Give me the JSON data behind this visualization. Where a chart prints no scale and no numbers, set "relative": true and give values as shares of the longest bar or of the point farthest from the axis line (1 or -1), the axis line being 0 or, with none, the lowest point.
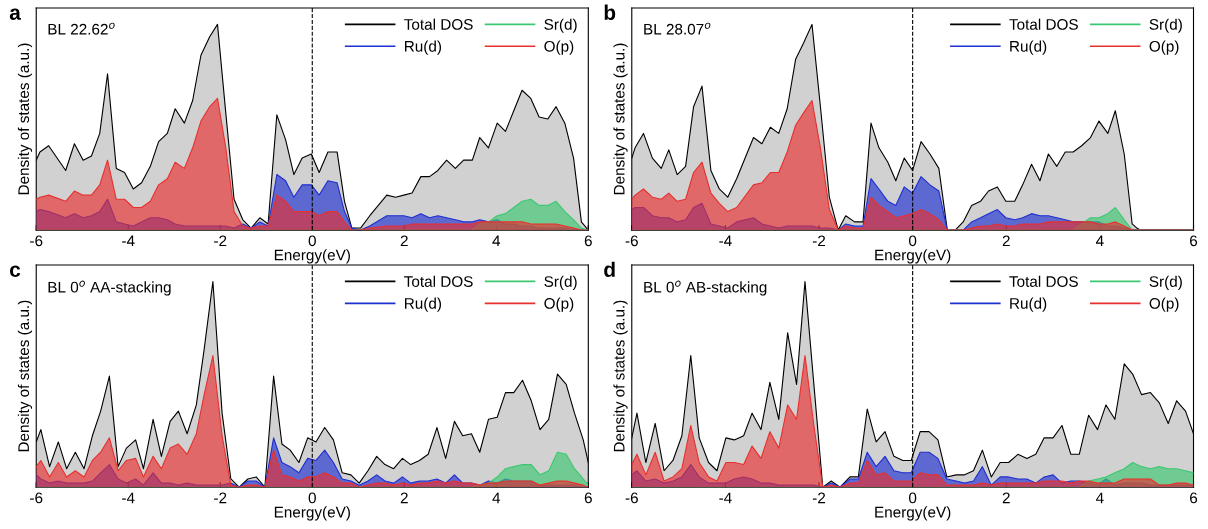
{
  "chart_data": [
    {
      "type": "area",
      "title": "a",
      "xlabel": "Energy(eV)",
      "ylabel": "Density of states (a.u.)",
      "annotations": [
        "BL 22.62$^{o}$"
      ],
      "relative": true,
      "xlim": [
        -6,
        6
      ],
      "xticks": [
        -6,
        -4,
        -2,
        0,
        2,
        4,
        6
      ],
      "tick_labels": "x",
      "legend": "top right",
      "grid": false,
      "ref_lines": [
        {
          "axis": "x",
          "value": 0,
          "color": "#000000",
          "line_style": "dashed"
        }
      ],
      "x": [
        -6,
        -5.92,
        -5.73,
        -5.36,
        -5.17,
        -4.98,
        -4.8,
        -4.62,
        -4.45,
        -4.26,
        -4.08,
        -3.89,
        -3.71,
        -3.52,
        -3.34,
        -3.15,
        -2.98,
        -2.78,
        -2.6,
        -2.42,
        -2.23,
        -2.06,
        -1.88,
        -1.7,
        -1.51,
        -1.33,
        -1.14,
        -0.96,
        -0.77,
        -0.58,
        -0.4,
        -0.22,
        -0.02,
        0.15,
        0.34,
        0.54,
        0.7,
        0.86,
        1.05,
        1.25,
        1.62,
        1.81,
        1.99,
        2.17,
        2.36,
        2.55,
        2.73,
        2.92,
        3.11,
        3.29,
        3.48,
        3.64,
        3.83,
        4.02,
        4.2,
        4.38,
        4.56,
        4.75,
        4.93,
        5.12,
        5.3,
        5.49,
        5.68,
        5.85,
        6
      ],
      "series": [
        {
          "name": "Total DOS",
          "color": "#000000",
          "values": [
            0.34,
            0.38,
            0.41,
            0.29,
            0.42,
            0.34,
            0.36,
            0.47,
            0.76,
            0.3,
            0.28,
            0.2,
            0.23,
            0.31,
            0.43,
            0.47,
            0.59,
            0.52,
            0.63,
            0.85,
            0.94,
            1.0,
            0.57,
            0.15,
            0.05,
            0.01,
            0.06,
            0.03,
            0.56,
            0.44,
            0.27,
            0.35,
            0.37,
            0.28,
            0.38,
            0.38,
            0.14,
            0.01,
            0.01,
            0.07,
            0.17,
            0.16,
            0.17,
            0.18,
            0.26,
            0.26,
            0.29,
            0.34,
            0.3,
            0.34,
            0.34,
            0.45,
            0.4,
            0.52,
            0.48,
            0.58,
            0.68,
            0.64,
            0.55,
            0.54,
            0.6,
            0.52,
            0.35,
            0.04,
            0
          ]
        },
        {
          "name": "Ru(d)",
          "color": "#1f2fd0",
          "values": [
            0.09,
            0.1,
            0.09,
            0.06,
            0.08,
            0.06,
            0.07,
            0.09,
            0.15,
            0.04,
            0.03,
            0.02,
            0.04,
            0.06,
            0.06,
            0.05,
            0.03,
            0.02,
            0.02,
            0.02,
            0.02,
            0.02,
            0.02,
            0.01,
            0.03,
            0.01,
            0.04,
            0.02,
            0.27,
            0.24,
            0.16,
            0.22,
            0.22,
            0.17,
            0.24,
            0.23,
            0.09,
            0.01,
            0,
            0.02,
            0.07,
            0.07,
            0.07,
            0.06,
            0.08,
            0.06,
            0.07,
            0.06,
            0.05,
            0.04,
            0.04,
            0.05,
            0.04,
            0.05,
            0.03,
            0.03,
            0.02,
            0.02,
            0.01,
            0.01,
            0.01,
            0.01,
            0,
            0,
            0
          ]
        },
        {
          "name": "Sr(d)",
          "color": "#3cc870",
          "values": [
            0,
            0,
            0,
            0,
            0,
            0,
            0,
            0,
            0,
            0,
            0,
            0,
            0,
            0,
            0,
            0,
            0,
            0,
            0,
            0,
            0,
            0,
            0,
            0,
            0,
            0,
            0,
            0,
            0,
            0,
            0,
            0,
            0,
            0,
            0,
            0,
            0,
            0,
            0,
            0,
            0,
            0,
            0,
            0,
            0,
            0,
            0,
            0,
            0,
            0,
            0,
            0.03,
            0.04,
            0.07,
            0.08,
            0.11,
            0.14,
            0.15,
            0.12,
            0.12,
            0.14,
            0.09,
            0.05,
            0.01,
            0
          ]
        },
        {
          "name": "O(p)",
          "color": "#e8302f",
          "values": [
            0.15,
            0.16,
            0.17,
            0.14,
            0.19,
            0.17,
            0.17,
            0.22,
            0.34,
            0.15,
            0.15,
            0.11,
            0.11,
            0.14,
            0.22,
            0.25,
            0.33,
            0.3,
            0.4,
            0.53,
            0.6,
            0.64,
            0.4,
            0.09,
            0.02,
            0.01,
            0.02,
            0.02,
            0.17,
            0.14,
            0.09,
            0.09,
            0.09,
            0.07,
            0.09,
            0.09,
            0.04,
            0,
            0,
            0.01,
            0.02,
            0.02,
            0.02,
            0.03,
            0.03,
            0.03,
            0.03,
            0.03,
            0.03,
            0.03,
            0.03,
            0.04,
            0.04,
            0.04,
            0.04,
            0.04,
            0.04,
            0.03,
            0.03,
            0.03,
            0.03,
            0.02,
            0.01,
            0,
            0
          ]
        }
      ]
    },
    {
      "type": "area",
      "title": "b",
      "xlabel": "Energy(eV)",
      "ylabel": "Density of states (a.u.)",
      "annotations": [
        "BL 28.07$^{o}$"
      ],
      "relative": true,
      "xlim": [
        -6,
        6
      ],
      "xticks": [
        -6,
        -4,
        -2,
        0,
        2,
        4,
        6
      ],
      "tick_labels": "x",
      "legend": "top right",
      "grid": false,
      "ref_lines": [
        {
          "axis": "x",
          "value": 0,
          "color": "#000000",
          "line_style": "dashed"
        }
      ],
      "x": [
        -6,
        -5.93,
        -5.75,
        -5.56,
        -5.37,
        -5.21,
        -5.03,
        -4.85,
        -4.68,
        -4.5,
        -4.31,
        -4.13,
        -3.95,
        -3.76,
        -3.4,
        -3.22,
        -3.04,
        -2.86,
        -2.68,
        -2.5,
        -2.33,
        -2.15,
        -1.97,
        -1.78,
        -1.59,
        -1.43,
        -1.24,
        -1.06,
        -0.89,
        -0.72,
        -0.53,
        -0.36,
        -0.18,
        0,
        0.18,
        0.37,
        0.56,
        0.74,
        0.91,
        1.08,
        1.26,
        1.45,
        1.62,
        1.81,
        1.99,
        2.18,
        2.35,
        2.54,
        2.72,
        2.9,
        3.08,
        3.26,
        3.43,
        3.61,
        3.8,
        3.98,
        4.17,
        4.33,
        4.52,
        4.69,
        4.79,
        4.87,
        6
      ],
      "series": [
        {
          "name": "Total DOS",
          "color": "#000000",
          "values": [
            0.35,
            0.4,
            0.47,
            0.35,
            0.3,
            0.39,
            0.27,
            0.31,
            0.6,
            0.7,
            0.29,
            0.2,
            0.16,
            0.25,
            0.45,
            0.42,
            0.5,
            0.47,
            0.59,
            0.83,
            0.91,
            1.0,
            0.6,
            0.16,
            0,
            0.07,
            0.04,
            0.04,
            0.52,
            0.4,
            0.33,
            0.24,
            0.35,
            0.29,
            0.43,
            0.37,
            0.3,
            0,
            0,
            0.04,
            0.12,
            0.14,
            0.19,
            0.21,
            0.14,
            0.14,
            0.22,
            0.32,
            0.24,
            0.37,
            0.31,
            0.38,
            0.38,
            0.41,
            0.45,
            0.53,
            0.47,
            0.58,
            0.37,
            0.03,
            0.01,
            0,
            0
          ]
        },
        {
          "name": "Ru(d)",
          "color": "#1f2fd0",
          "values": [
            0.1,
            0.11,
            0.11,
            0.07,
            0.06,
            0.06,
            0.04,
            0.05,
            0.11,
            0.13,
            0.03,
            0.02,
            0.01,
            0.04,
            0.06,
            0.03,
            0.02,
            0.01,
            0.02,
            0.02,
            0.02,
            0.02,
            0.01,
            0.01,
            0,
            0.03,
            0.02,
            0.02,
            0.25,
            0.2,
            0.14,
            0.12,
            0.21,
            0.18,
            0.26,
            0.22,
            0.19,
            0,
            0,
            0,
            0.04,
            0.06,
            0.08,
            0.1,
            0.06,
            0.05,
            0.06,
            0.08,
            0.07,
            0.07,
            0.06,
            0.05,
            0.04,
            0.04,
            0.04,
            0.04,
            0.02,
            0.02,
            0.01,
            0,
            0,
            0,
            0
          ]
        },
        {
          "name": "Sr(d)",
          "color": "#3cc870",
          "values": [
            0,
            0,
            0,
            0,
            0,
            0,
            0,
            0,
            0,
            0,
            0,
            0,
            0,
            0,
            0,
            0,
            0,
            0,
            0,
            0,
            0,
            0,
            0,
            0,
            0,
            0,
            0,
            0,
            0,
            0,
            0,
            0,
            0,
            0,
            0,
            0,
            0,
            0,
            0,
            0,
            0,
            0,
            0,
            0,
            0,
            0,
            0,
            0,
            0,
            0,
            0,
            0,
            0,
            0.03,
            0.06,
            0.06,
            0.08,
            0.11,
            0.05,
            0,
            0,
            0,
            0
          ]
        },
        {
          "name": "O(p)",
          "color": "#e8302f",
          "values": [
            0.15,
            0.17,
            0.2,
            0.16,
            0.15,
            0.18,
            0.14,
            0.15,
            0.28,
            0.33,
            0.18,
            0.13,
            0.09,
            0.11,
            0.22,
            0.23,
            0.28,
            0.28,
            0.38,
            0.51,
            0.57,
            0.63,
            0.4,
            0.1,
            0,
            0.02,
            0.01,
            0.01,
            0.16,
            0.12,
            0.09,
            0.06,
            0.07,
            0.08,
            0.1,
            0.08,
            0.05,
            0,
            0,
            0,
            0.01,
            0.02,
            0.02,
            0.03,
            0.02,
            0.02,
            0.03,
            0.03,
            0.03,
            0.04,
            0.04,
            0.04,
            0.04,
            0.04,
            0.04,
            0.03,
            0.03,
            0.04,
            0.02,
            0,
            0,
            0,
            0
          ]
        }
      ]
    },
    {
      "type": "area",
      "title": "c",
      "xlabel": "Energy(eV)",
      "ylabel": "Density of states (a.u.)",
      "annotations": [
        "BL 0$^{o}$ AA-stacking"
      ],
      "relative": true,
      "xlim": [
        -6,
        6
      ],
      "xticks": [
        -6,
        -4,
        -2,
        0,
        2,
        4,
        6
      ],
      "tick_labels": "x",
      "legend": "top right",
      "grid": false,
      "ref_lines": [
        {
          "axis": "x",
          "value": 0,
          "color": "#000000",
          "line_style": "dashed"
        }
      ],
      "x": [
        -6,
        -5.9,
        -5.71,
        -5.52,
        -5.34,
        -5.15,
        -4.96,
        -4.78,
        -4.6,
        -4.41,
        -4.22,
        -4.04,
        -3.84,
        -3.67,
        -3.46,
        -3.28,
        -3.09,
        -2.91,
        -2.72,
        -2.52,
        -2.35,
        -2.16,
        -1.96,
        -1.77,
        -1.59,
        -1.4,
        -1.22,
        -1.03,
        -0.84,
        -0.66,
        -0.48,
        -0.29,
        -0.1,
        0.08,
        0.27,
        0.46,
        0.65,
        0.84,
        1.02,
        1.21,
        1.4,
        1.58,
        1.77,
        1.96,
        2.14,
        2.33,
        2.52,
        2.71,
        2.9,
        3.09,
        3.27,
        3.46,
        3.64,
        3.83,
        4.02,
        4.2,
        4.38,
        4.57,
        4.76,
        4.95,
        5.14,
        5.33,
        5.52,
        5.7,
        5.89,
        6
      ],
      "series": [
        {
          "name": "Total DOS",
          "color": "#000000",
          "values": [
            0.22,
            0.28,
            0.1,
            0.22,
            0.09,
            0.17,
            0.09,
            0.25,
            0.37,
            0.54,
            0.1,
            0.19,
            0.23,
            0.09,
            0.33,
            0.15,
            0.32,
            0.37,
            0.26,
            0.4,
            0.67,
            1.0,
            0.36,
            0.04,
            0,
            0.04,
            0.05,
            0,
            0.54,
            0.21,
            0.18,
            0.12,
            0.24,
            0.22,
            0.29,
            0.23,
            0.07,
            0.06,
            0.02,
            0.08,
            0.15,
            0.11,
            0.09,
            0.14,
            0.11,
            0.13,
            0.16,
            0.29,
            0.14,
            0.32,
            0.25,
            0.26,
            0.17,
            0.33,
            0.34,
            0.46,
            0.46,
            0.52,
            0.42,
            0.28,
            0.33,
            0.55,
            0.5,
            0.36,
            0.23,
            0.12
          ]
        },
        {
          "name": "Ru(d)",
          "color": "#1f2fd0",
          "values": [
            0.06,
            0.04,
            0.02,
            0.03,
            0.02,
            0.02,
            0.02,
            0.03,
            0.07,
            0.11,
            0.04,
            0.02,
            0.04,
            0.01,
            0.07,
            0.02,
            0.02,
            0.01,
            0.02,
            0.01,
            0.01,
            0.01,
            0.01,
            0.02,
            0,
            0.03,
            0.03,
            0,
            0.24,
            0.12,
            0.1,
            0.07,
            0.14,
            0.13,
            0.18,
            0.12,
            0.04,
            0.03,
            0.01,
            0.03,
            0.06,
            0.03,
            0.02,
            0.05,
            0.02,
            0.03,
            0.03,
            0.04,
            0.02,
            0.06,
            0.02,
            0.02,
            0.01,
            0.03,
            0.02,
            0.04,
            0.03,
            0.03,
            0.03,
            0.01,
            0.01,
            0.01,
            0.01,
            0.01,
            0,
            0
          ]
        },
        {
          "name": "Sr(d)",
          "color": "#3cc870",
          "values": [
            0,
            0,
            0,
            0,
            0,
            0,
            0,
            0,
            0,
            0,
            0,
            0,
            0,
            0,
            0,
            0,
            0,
            0,
            0,
            0,
            0,
            0,
            0,
            0,
            0,
            0,
            0,
            0,
            0,
            0,
            0,
            0,
            0,
            0,
            0,
            0,
            0,
            0,
            0,
            0,
            0,
            0,
            0,
            0,
            0,
            0,
            0,
            0,
            0,
            0,
            0,
            0,
            0.01,
            0.02,
            0.05,
            0.09,
            0.1,
            0.11,
            0.11,
            0.06,
            0.08,
            0.17,
            0.16,
            0.09,
            0.04,
            0.01
          ]
        },
        {
          "name": "O(p)",
          "color": "#e8302f",
          "values": [
            0.1,
            0.13,
            0.05,
            0.12,
            0.05,
            0.08,
            0.05,
            0.13,
            0.17,
            0.24,
            0.08,
            0.13,
            0.14,
            0.05,
            0.15,
            0.09,
            0.19,
            0.21,
            0.16,
            0.26,
            0.45,
            0.64,
            0.25,
            0.01,
            0,
            0.01,
            0.01,
            0,
            0.18,
            0.06,
            0.05,
            0.03,
            0.05,
            0.05,
            0.07,
            0.05,
            0.02,
            0.02,
            0,
            0.01,
            0.02,
            0.02,
            0.01,
            0.02,
            0.01,
            0.02,
            0.02,
            0.03,
            0.02,
            0.03,
            0.02,
            0.02,
            0.01,
            0.02,
            0.02,
            0.03,
            0.03,
            0.03,
            0.03,
            0.01,
            0.02,
            0.03,
            0.03,
            0.02,
            0.01,
            0
          ]
        }
      ]
    },
    {
      "type": "area",
      "title": "d",
      "xlabel": "Energy(eV)",
      "ylabel": "Density of states (a.u.)",
      "annotations": [
        "BL 0$^{o}$ AB-stacking"
      ],
      "relative": true,
      "xlim": [
        -6,
        6
      ],
      "xticks": [
        -6,
        -4,
        -2,
        0,
        2,
        4,
        6
      ],
      "tick_labels": "x",
      "legend": "top right",
      "grid": false,
      "ref_lines": [
        {
          "axis": "x",
          "value": 0,
          "color": "#000000",
          "line_style": "dashed"
        }
      ],
      "x": [
        -6,
        -5.89,
        -5.7,
        -5.5,
        -5.31,
        -5.12,
        -4.93,
        -4.74,
        -4.56,
        -4.36,
        -4.18,
        -3.99,
        -3.81,
        -3.61,
        -3.43,
        -3.24,
        -3.05,
        -2.86,
        -2.67,
        -2.48,
        -2.3,
        -2.11,
        -1.92,
        -1.74,
        -1.55,
        -1.34,
        -1.16,
        -0.97,
        -0.78,
        -0.59,
        -0.4,
        -0.21,
        -0.03,
        0.16,
        0.35,
        0.54,
        0.73,
        0.93,
        1.11,
        1.3,
        1.49,
        1.68,
        1.87,
        2.05,
        2.25,
        2.44,
        2.63,
        2.81,
        3.0,
        3.19,
        3.38,
        3.56,
        3.76,
        3.95,
        4.13,
        4.32,
        4.52,
        4.7,
        4.89,
        5.08,
        5.27,
        5.46,
        5.64,
        5.83,
        6
      ],
      "series": [
        {
          "name": "Total DOS",
          "color": "#000000",
          "values": [
            0.24,
            0.36,
            0.12,
            0.31,
            0.08,
            0.13,
            0.25,
            0.64,
            0.24,
            0.12,
            0.08,
            0.24,
            0.23,
            0.25,
            0.36,
            0.28,
            0.51,
            0.33,
            0.75,
            0.5,
            1.0,
            0.5,
            0,
            0.03,
            0,
            0.05,
            0.05,
            0.38,
            0.22,
            0.27,
            0.15,
            0.13,
            0.13,
            0.27,
            0.27,
            0.23,
            0.05,
            0.06,
            0.06,
            0.08,
            0.18,
            0.05,
            0.12,
            0.12,
            0.16,
            0.14,
            0.16,
            0.24,
            0.24,
            0.3,
            0.16,
            0.16,
            0.35,
            0.28,
            0.4,
            0.33,
            0.6,
            0.55,
            0.45,
            0.46,
            0.41,
            0.31,
            0.42,
            0.37,
            0.26
          ]
        },
        {
          "name": "Ru(d)",
          "color": "#1f2fd0",
          "values": [
            0.06,
            0.08,
            0.03,
            0.04,
            0.02,
            0.03,
            0.05,
            0.11,
            0.05,
            0.02,
            0.02,
            0.02,
            0.04,
            0.05,
            0.04,
            0.02,
            0.02,
            0.01,
            0.01,
            0.01,
            0.01,
            0.01,
            0,
            0.02,
            0,
            0.04,
            0.04,
            0.17,
            0.1,
            0.15,
            0.08,
            0.07,
            0.07,
            0.17,
            0.17,
            0.14,
            0.04,
            0.03,
            0.02,
            0.03,
            0.1,
            0.01,
            0.05,
            0.05,
            0.04,
            0.04,
            0.02,
            0.05,
            0.06,
            0.02,
            0.03,
            0.03,
            0.02,
            0.01,
            0.04,
            0.01,
            0.02,
            0.02,
            0.02,
            0.01,
            0.01,
            0.01,
            0.01,
            0.01,
            0.01
          ]
        },
        {
          "name": "Sr(d)",
          "color": "#3cc870",
          "values": [
            0,
            0,
            0,
            0,
            0,
            0,
            0,
            0,
            0,
            0,
            0,
            0,
            0,
            0,
            0,
            0,
            0,
            0,
            0,
            0,
            0,
            0,
            0,
            0,
            0,
            0,
            0,
            0,
            0,
            0,
            0,
            0,
            0,
            0,
            0,
            0,
            0,
            0,
            0,
            0,
            0,
            0,
            0,
            0,
            0,
            0,
            0,
            0,
            0,
            0,
            0,
            0,
            0.03,
            0.04,
            0.05,
            0.07,
            0.09,
            0.12,
            0.1,
            0.09,
            0.1,
            0.09,
            0.09,
            0.08,
            0.07
          ]
        },
        {
          "name": "O(p)",
          "color": "#e8302f",
          "values": [
            0.11,
            0.16,
            0.06,
            0.17,
            0.03,
            0.05,
            0.09,
            0.3,
            0.12,
            0.05,
            0.03,
            0.12,
            0.12,
            0.11,
            0.2,
            0.14,
            0.27,
            0.19,
            0.4,
            0.33,
            0.64,
            0.3,
            0,
            0.01,
            0,
            0.02,
            0.02,
            0.13,
            0.06,
            0.07,
            0.03,
            0.03,
            0.03,
            0.07,
            0.06,
            0.06,
            0.01,
            0.01,
            0.01,
            0.01,
            0.02,
            0.01,
            0.02,
            0.02,
            0.02,
            0.02,
            0.02,
            0.03,
            0.03,
            0.03,
            0.02,
            0.03,
            0.03,
            0.02,
            0.02,
            0.02,
            0.04,
            0.04,
            0.04,
            0.04,
            0.01,
            0.01,
            0.02,
            0.02,
            0.01
          ]
        }
      ]
    }
  ]
}
